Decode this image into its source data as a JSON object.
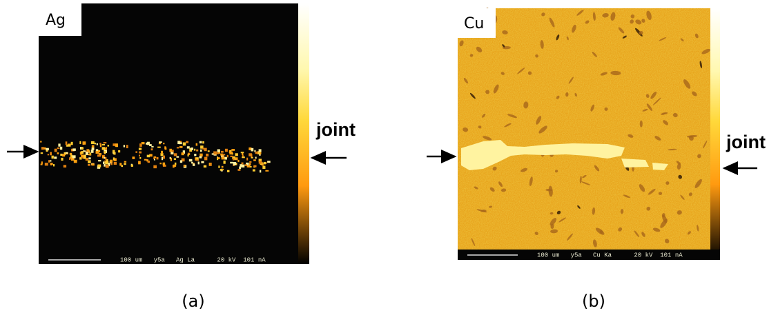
{
  "panels": [
    {
      "element": "Ag",
      "annotation": "joint",
      "info": "100 um   y5a   Ag La      20 kV  101 nA",
      "caption": "(a)"
    },
    {
      "element": "Cu",
      "annotation": "joint",
      "info": "100 um   y5a   Cu Ka      20 kV  101 nA",
      "caption": "(b)"
    }
  ]
}
